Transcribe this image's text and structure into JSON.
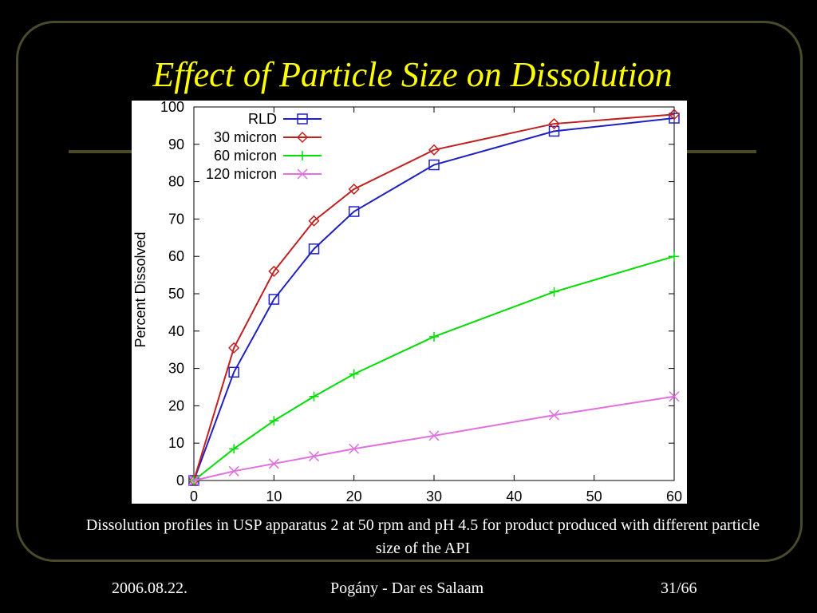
{
  "slide": {
    "title": "Effect of Particle Size on Dissolution",
    "caption": "Dissolution profiles in USP apparatus 2 at 50 rpm and pH 4.5 for product produced with different particle size of the API",
    "footer_left": "2006.08.22.",
    "footer_center": "Pogány - Dar es Salaam",
    "footer_right": "31/66"
  },
  "chart_data": {
    "type": "line",
    "title": "",
    "xlabel": "",
    "ylabel": "Percent Dissolved",
    "xlim": [
      0,
      60
    ],
    "ylim": [
      0,
      100
    ],
    "xticks": [
      0,
      10,
      20,
      30,
      40,
      50,
      60
    ],
    "yticks": [
      0,
      10,
      20,
      30,
      40,
      50,
      60,
      70,
      80,
      90,
      100
    ],
    "grid": false,
    "legend_position": "top-left",
    "series": [
      {
        "name": "RLD",
        "color": "#2020c0",
        "marker": "square",
        "x": [
          0,
          5,
          10,
          15,
          20,
          30,
          45,
          60
        ],
        "y": [
          0,
          29,
          48.5,
          62,
          72,
          84.5,
          93.5,
          97
        ]
      },
      {
        "name": "30 micron",
        "color": "#c02020",
        "marker": "diamond",
        "x": [
          0,
          5,
          10,
          15,
          20,
          30,
          45,
          60
        ],
        "y": [
          0,
          35.5,
          56,
          69.5,
          78,
          88.5,
          95.5,
          98
        ]
      },
      {
        "name": "60 micron",
        "color": "#00dd00",
        "marker": "plus",
        "x": [
          0,
          5,
          10,
          15,
          20,
          30,
          45,
          60
        ],
        "y": [
          0,
          8.5,
          16,
          22.5,
          28.5,
          38.5,
          50.5,
          60
        ]
      },
      {
        "name": "120 micron",
        "color": "#e070e0",
        "marker": "cross",
        "x": [
          0,
          5,
          10,
          15,
          20,
          30,
          45,
          60
        ],
        "y": [
          0,
          2.5,
          4.5,
          6.5,
          8.5,
          12,
          17.5,
          22.5
        ]
      }
    ]
  }
}
